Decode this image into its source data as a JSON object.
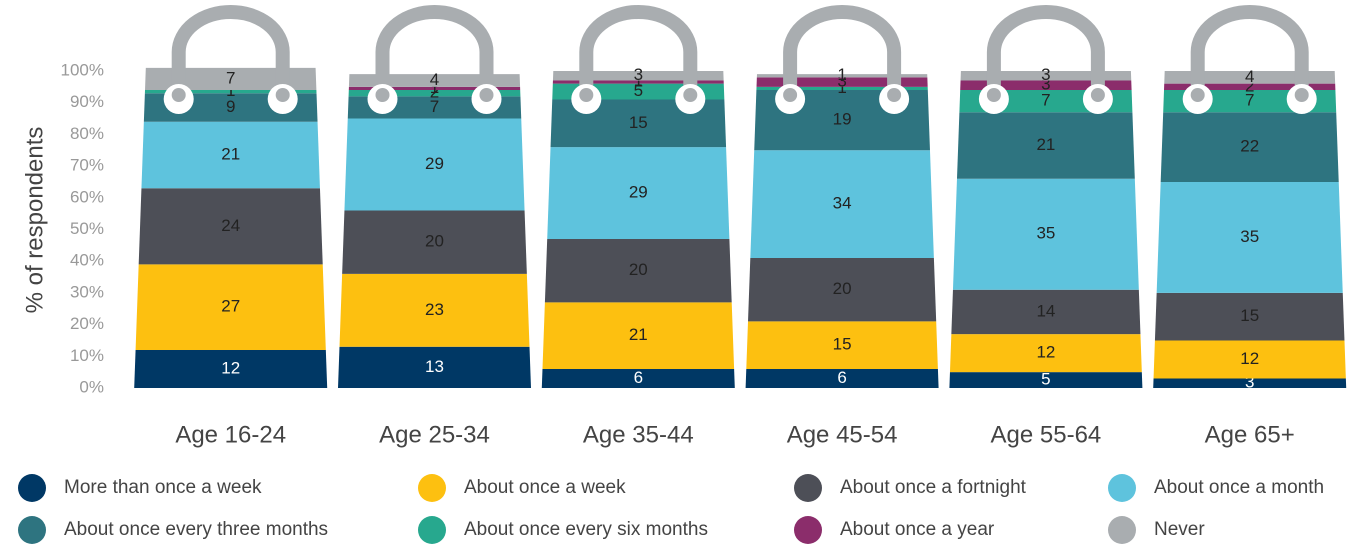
{
  "chart_data": {
    "type": "bar",
    "stacked": true,
    "y_label": "% of respondents",
    "categories": [
      "Age 16-24",
      "Age 25-34",
      "Age 35-44",
      "Age 45-54",
      "Age 55-64",
      "Age 65+"
    ],
    "series": [
      {
        "name": "More than once a week",
        "color": "#003865",
        "values": [
          12,
          13,
          6,
          6,
          5,
          3
        ]
      },
      {
        "name": "About once a week",
        "color": "#fdc010",
        "values": [
          27,
          23,
          21,
          15,
          12,
          12
        ]
      },
      {
        "name": "About once a fortnight",
        "color": "#4d4f57",
        "values": [
          24,
          20,
          20,
          20,
          14,
          15
        ]
      },
      {
        "name": "About once a month",
        "color": "#5ec3dd",
        "values": [
          21,
          29,
          29,
          34,
          35,
          35
        ]
      },
      {
        "name": "About once every three months",
        "color": "#2e7480",
        "values": [
          9,
          7,
          15,
          19,
          21,
          22
        ]
      },
      {
        "name": "About once every six months",
        "color": "#27a88e",
        "values": [
          1,
          2,
          5,
          1,
          7,
          7
        ]
      },
      {
        "name": "About once a year",
        "color": "#8b2d6b",
        "values": [
          null,
          1,
          1,
          3,
          3,
          2
        ]
      },
      {
        "name": "Never",
        "color": "#a9adb0",
        "values": [
          7,
          4,
          3,
          1,
          3,
          4
        ]
      }
    ],
    "ylim": [
      0,
      100
    ],
    "yticks": [
      {
        "value": 0,
        "label": "0%"
      },
      {
        "value": 10,
        "label": "10%"
      },
      {
        "value": 20,
        "label": "20%"
      },
      {
        "value": 30,
        "label": "30%"
      },
      {
        "value": 40,
        "label": "40%"
      },
      {
        "value": 50,
        "label": "50%"
      },
      {
        "value": 60,
        "label": "60%"
      },
      {
        "value": 70,
        "label": "70%"
      },
      {
        "value": 80,
        "label": "80%"
      },
      {
        "value": 90,
        "label": "90%"
      },
      {
        "value": 100,
        "label": "100%"
      }
    ]
  }
}
